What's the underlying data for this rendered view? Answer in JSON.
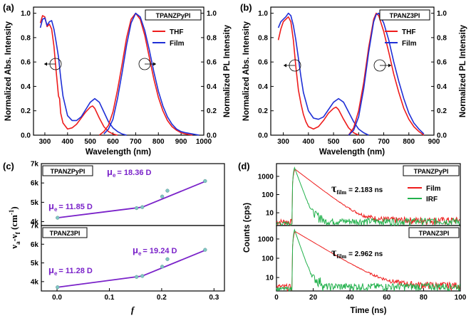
{
  "colors": {
    "red": "#ee1c1c",
    "blue": "#1f2fd6",
    "purple": "#7a22c9",
    "green": "#22b14c",
    "teal_marker": "#7fc7c4"
  },
  "panels": {
    "a": {
      "label": "(a)",
      "box": "TPANZPyPI"
    },
    "b": {
      "label": "(b)",
      "box": "TPANZ3PI"
    },
    "c": {
      "label": "(c)",
      "box_top": "TPANZPyPI",
      "box_bottom": "TPANZ3PI",
      "ann_top_left": "11.85 D",
      "ann_top_right": "18.36 D",
      "ann_bottom_left": "11.28 D",
      "ann_bottom_right": "19.24 D",
      "mu": "μ",
      "sub_e": "e"
    },
    "d": {
      "label": "(d)",
      "box_top": "TPANZPyPI",
      "box_bottom": "TPANZ3PI",
      "tau_top": "= 2.183 ns",
      "tau_bottom": "= 2.962 ns",
      "tau_symbol": "τ",
      "tau_sub": "film"
    }
  },
  "chart_data": [
    {
      "panel": "a",
      "type": "line",
      "xlabel": "Wavelength (nm)",
      "ylabel_left": "Normalized Abs. Intensity",
      "ylabel_right": "Normalized PL Intensity",
      "xlim": [
        250,
        1000
      ],
      "ylim": [
        0,
        1.05
      ],
      "xticks": [
        "300",
        "400",
        "500",
        "600",
        "700",
        "800",
        "900",
        "1000"
      ],
      "yticks": [
        "0.0",
        "0.2",
        "0.4",
        "0.6",
        "0.8",
        "1.0"
      ],
      "legend": [
        "THF",
        "Film"
      ],
      "series": [
        {
          "name": "THF",
          "role": "abs",
          "x": [
            280,
            290,
            300,
            310,
            320,
            330,
            340,
            350,
            355,
            360,
            365,
            370,
            380,
            400,
            420,
            440,
            460,
            480,
            500,
            510,
            520,
            540,
            560,
            580,
            600,
            620
          ],
          "y": [
            0.92,
            0.98,
            0.97,
            0.89,
            0.91,
            0.87,
            0.73,
            0.52,
            0.42,
            0.32,
            0.3,
            0.18,
            0.1,
            0.05,
            0.06,
            0.09,
            0.14,
            0.19,
            0.23,
            0.24,
            0.22,
            0.14,
            0.07,
            0.03,
            0.01,
            0.0
          ]
        },
        {
          "name": "Film",
          "role": "abs",
          "x": [
            280,
            290,
            300,
            310,
            320,
            330,
            340,
            350,
            360,
            370,
            380,
            400,
            420,
            440,
            460,
            480,
            500,
            520,
            540,
            560,
            580,
            600,
            620,
            640,
            660
          ],
          "y": [
            0.88,
            0.95,
            0.96,
            0.9,
            0.93,
            0.94,
            0.87,
            0.76,
            0.64,
            0.47,
            0.32,
            0.16,
            0.12,
            0.12,
            0.15,
            0.21,
            0.27,
            0.3,
            0.27,
            0.19,
            0.11,
            0.06,
            0.03,
            0.01,
            0.0
          ]
        },
        {
          "name": "THF",
          "role": "pl",
          "x": [
            540,
            560,
            580,
            600,
            620,
            640,
            660,
            680,
            700,
            720,
            740,
            760,
            780,
            800,
            820,
            840,
            860,
            880,
            900,
            920,
            950
          ],
          "y": [
            0.0,
            0.03,
            0.08,
            0.19,
            0.37,
            0.58,
            0.8,
            0.95,
            1.0,
            0.95,
            0.82,
            0.64,
            0.46,
            0.31,
            0.2,
            0.12,
            0.07,
            0.04,
            0.02,
            0.01,
            0.0
          ]
        },
        {
          "name": "Film",
          "role": "pl",
          "x": [
            560,
            580,
            600,
            620,
            640,
            660,
            680,
            700,
            720,
            740,
            760,
            780,
            800,
            820,
            840,
            860,
            880,
            900,
            920,
            950,
            980
          ],
          "y": [
            0.01,
            0.05,
            0.13,
            0.3,
            0.51,
            0.74,
            0.92,
            1.0,
            0.97,
            0.86,
            0.7,
            0.52,
            0.36,
            0.24,
            0.15,
            0.09,
            0.05,
            0.03,
            0.02,
            0.01,
            0.0
          ]
        }
      ]
    },
    {
      "panel": "b",
      "type": "line",
      "xlabel": "Wavelength (nm)",
      "ylabel_left": "Normalized Abs. Intensity",
      "ylabel_right": "Normalized PL Intensity",
      "xlim": [
        250,
        900
      ],
      "ylim": [
        0,
        1.05
      ],
      "xticks": [
        "300",
        "400",
        "500",
        "600",
        "700",
        "800",
        "900"
      ],
      "yticks": [
        "0.0",
        "0.2",
        "0.4",
        "0.6",
        "0.8",
        "1.0"
      ],
      "legend": [
        "THF",
        "Film"
      ],
      "series": [
        {
          "name": "THF",
          "role": "abs",
          "x": [
            280,
            290,
            300,
            310,
            320,
            330,
            340,
            350,
            360,
            370,
            380,
            390,
            400,
            420,
            440,
            460,
            480,
            500,
            510,
            520,
            540,
            560,
            580,
            600
          ],
          "y": [
            0.78,
            0.87,
            0.93,
            0.95,
            0.97,
            0.93,
            0.78,
            0.56,
            0.37,
            0.26,
            0.17,
            0.11,
            0.07,
            0.05,
            0.07,
            0.12,
            0.18,
            0.22,
            0.23,
            0.21,
            0.13,
            0.06,
            0.02,
            0.0
          ]
        },
        {
          "name": "Film",
          "role": "abs",
          "x": [
            280,
            290,
            300,
            310,
            320,
            330,
            340,
            350,
            360,
            370,
            380,
            400,
            420,
            440,
            460,
            480,
            500,
            520,
            540,
            560,
            580,
            600,
            620,
            640
          ],
          "y": [
            0.88,
            0.93,
            0.95,
            0.97,
            1.0,
            0.98,
            0.9,
            0.78,
            0.63,
            0.48,
            0.35,
            0.2,
            0.14,
            0.13,
            0.15,
            0.21,
            0.27,
            0.3,
            0.27,
            0.19,
            0.11,
            0.05,
            0.02,
            0.0
          ]
        },
        {
          "name": "THF",
          "role": "pl",
          "x": [
            560,
            580,
            600,
            620,
            640,
            660,
            670,
            680,
            700,
            720,
            740,
            760,
            780,
            800,
            820,
            840,
            860
          ],
          "y": [
            0.0,
            0.06,
            0.2,
            0.43,
            0.72,
            0.95,
            1.0,
            0.98,
            0.85,
            0.68,
            0.5,
            0.35,
            0.22,
            0.13,
            0.07,
            0.03,
            0.0
          ]
        },
        {
          "name": "Film",
          "role": "pl",
          "x": [
            560,
            580,
            600,
            620,
            640,
            660,
            670,
            680,
            700,
            720,
            740,
            760,
            780,
            800,
            820,
            840,
            860
          ],
          "y": [
            0.0,
            0.04,
            0.15,
            0.38,
            0.68,
            0.93,
            0.99,
            1.0,
            0.92,
            0.78,
            0.6,
            0.44,
            0.3,
            0.18,
            0.1,
            0.05,
            0.01
          ]
        }
      ]
    },
    {
      "panel": "c",
      "type": "scatter",
      "xlabel": "f",
      "ylabel": "νa-νf (cm-1)",
      "ylabel_parts": [
        "ν",
        "a",
        "-ν",
        "f",
        " (cm",
        "-1",
        ")"
      ],
      "xlim": [
        -0.03,
        0.32
      ],
      "xticks": [
        "0.0",
        "0.1",
        "0.2",
        "0.3"
      ],
      "sub": [
        {
          "name": "TPANZPyPI",
          "ylim": [
            3.8,
            7.0
          ],
          "yticks": [
            "4k",
            "5k",
            "6k",
            "7k"
          ],
          "points_x": [
            0.001,
            0.152,
            0.163,
            0.201,
            0.211,
            0.283
          ],
          "points_y": [
            4.2,
            4.7,
            4.75,
            5.3,
            5.6,
            6.1
          ],
          "fit_low": [
            [
              0.001,
              4.2
            ],
            [
              0.163,
              4.75
            ]
          ],
          "fit_high": [
            [
              0.163,
              4.75
            ],
            [
              0.285,
              6.1
            ]
          ]
        },
        {
          "name": "TPANZ3PI",
          "ylim": [
            3.5,
            7.0
          ],
          "yticks": [
            "4k",
            "5k",
            "6k",
            "7k"
          ],
          "points_x": [
            0.001,
            0.152,
            0.163,
            0.201,
            0.211,
            0.283
          ],
          "points_y": [
            3.7,
            4.25,
            4.3,
            4.8,
            5.2,
            5.7
          ],
          "fit_low": [
            [
              0.001,
              3.7
            ],
            [
              0.163,
              4.3
            ]
          ],
          "fit_high": [
            [
              0.163,
              4.3
            ],
            [
              0.285,
              5.7
            ]
          ]
        }
      ]
    },
    {
      "panel": "d",
      "type": "line",
      "xlabel": "Time (ns)",
      "ylabel": "Counts (cps)",
      "log_y": true,
      "xlim": [
        0,
        100
      ],
      "xticks": [
        "0",
        "20",
        "40",
        "60",
        "80",
        "100"
      ],
      "legend": [
        "Film",
        "IRF"
      ],
      "sub": [
        {
          "name": "TPANZPyPI",
          "ylim": [
            2,
            5000
          ],
          "yticks": [
            "10",
            "100",
            "1000"
          ],
          "tau": 2.183
        },
        {
          "name": "TPANZ3PI",
          "ylim": [
            2,
            5000
          ],
          "yticks": [
            "10",
            "100",
            "1000"
          ],
          "tau": 2.962
        }
      ]
    }
  ]
}
